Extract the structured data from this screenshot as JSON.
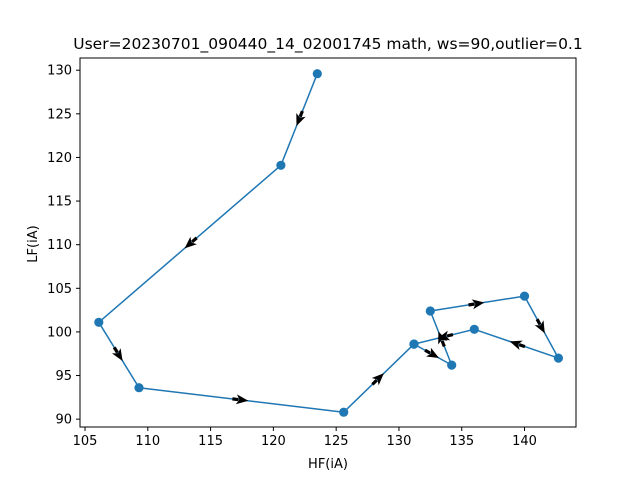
{
  "chart_data": {
    "type": "line",
    "title": "User=20230701_090440_14_02001745 math, ws=90,outlier=0.1",
    "xlabel": "HF(iA)",
    "ylabel": "LF(iA)",
    "xlim": [
      104.6,
      144.1
    ],
    "ylim": [
      89.1,
      131.4
    ],
    "x_ticks": [
      105,
      110,
      115,
      120,
      125,
      130,
      135,
      140
    ],
    "y_ticks": [
      90,
      95,
      100,
      105,
      110,
      115,
      120,
      125,
      130
    ],
    "grid": false,
    "series": [
      {
        "x": [
          123.5,
          120.6,
          106.1,
          109.3,
          125.6,
          131.2,
          134.2,
          132.5,
          140.0,
          142.7,
          136.0,
          131.2
        ],
        "y": [
          129.6,
          119.1,
          101.1,
          93.6,
          90.8,
          98.6,
          96.2,
          102.4,
          104.1,
          97.0,
          100.3,
          98.6
        ],
        "color": "#1f77b4",
        "marker": "circle",
        "direction_arrows": true,
        "arrow_color": "#000000"
      }
    ]
  }
}
